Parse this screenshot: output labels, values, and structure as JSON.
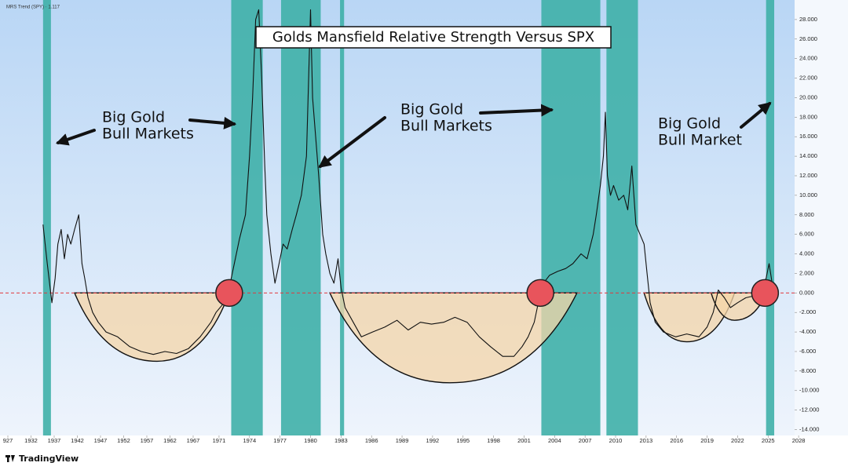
{
  "chart_data": {
    "type": "line",
    "title": "Golds Mansfield Relative Strength Versus SPX",
    "legend_label": "MRS Trend (SPY) · 1.117",
    "brand": "TradingView",
    "ylim": [
      -14.6,
      30.0
    ],
    "yticks": [
      {
        "value": 28,
        "label": "28.000"
      },
      {
        "value": 26,
        "label": "26.000"
      },
      {
        "value": 24,
        "label": "24.000"
      },
      {
        "value": 22,
        "label": "22.000"
      },
      {
        "value": 20,
        "label": "20.000"
      },
      {
        "value": 18,
        "label": "18.000"
      },
      {
        "value": 16,
        "label": "16.000"
      },
      {
        "value": 14,
        "label": "14.000"
      },
      {
        "value": 12,
        "label": "12.000"
      },
      {
        "value": 10,
        "label": "10.000"
      },
      {
        "value": 8,
        "label": "8.000"
      },
      {
        "value": 6,
        "label": "6.000"
      },
      {
        "value": 4,
        "label": "4.000"
      },
      {
        "value": 2,
        "label": "2.000"
      },
      {
        "value": 0,
        "label": "0.000"
      },
      {
        "value": -2,
        "label": "-2.000"
      },
      {
        "value": -4,
        "label": "-4.000"
      },
      {
        "value": -6,
        "label": "-6.000"
      },
      {
        "value": -8,
        "label": "-8.000"
      },
      {
        "value": -10,
        "label": "-10.000"
      },
      {
        "value": -12,
        "label": "-12.000"
      },
      {
        "value": -14,
        "label": "-14.000"
      }
    ],
    "xticks": [
      {
        "value": 1927,
        "label": "927"
      },
      1932,
      1937,
      1942,
      1947,
      1952,
      1957,
      1962,
      1967,
      1971,
      1974,
      1977,
      1980,
      1983,
      1986,
      1989,
      1992,
      1995,
      1998,
      2001,
      2004,
      2007,
      2010,
      2013,
      2016,
      2019,
      2022,
      2025,
      2028
    ],
    "reference_line": {
      "value": 0,
      "color": "#e0393e"
    },
    "bands_color": "#3fb0a9",
    "bands": [
      {
        "start": 1934.6,
        "end": 1936.3
      },
      {
        "start": 1972.2,
        "end": 1975.3
      },
      {
        "start": 1977.1,
        "end": 1981.0
      },
      {
        "start": 1982.9,
        "end": 1983.3
      },
      {
        "start": 2002.7,
        "end": 2008.5
      },
      {
        "start": 2009.1,
        "end": 2012.2
      },
      {
        "start": 2024.8,
        "end": 2025.6
      }
    ],
    "bowls_color": "#f5d6a8",
    "bowls": [
      {
        "start": 1941.4,
        "end": 1972.0,
        "bottom_x": 1959.2,
        "bottom": -7.0
      },
      {
        "start": 1981.9,
        "end": 2006.2,
        "bottom_x": 1993.7,
        "bottom": -9.2
      },
      {
        "start": 2012.8,
        "end": 2021.7,
        "bottom_x": 2017.0,
        "bottom": -5.0
      },
      {
        "start": 2019.4,
        "end": 2024.8,
        "bottom_x": 2021.7,
        "bottom": -2.8
      }
    ],
    "circles_color": "#e8545c",
    "circles": [
      {
        "x": 1972.0,
        "y": 0
      },
      {
        "x": 2002.6,
        "y": 0
      },
      {
        "x": 2024.7,
        "y": 0
      }
    ],
    "annotations": [
      {
        "lines": [
          "Big Gold",
          "Bull Markets"
        ]
      },
      {
        "lines": [
          "Big Gold",
          "Bull Markets"
        ]
      },
      {
        "lines": [
          "Big Gold",
          "Bull Market"
        ]
      }
    ],
    "series": [
      {
        "name": "MRS Trend (SPY)",
        "color": "#111111",
        "x": [
          1934.6,
          1935.5,
          1936.5,
          1937.2,
          1937.8,
          1938.5,
          1939.2,
          1939.9,
          1940.6,
          1941.4,
          1942.3,
          1943.0,
          1943.6,
          1944.3,
          1945.3,
          1946.5,
          1948.2,
          1950.7,
          1953.3,
          1955.8,
          1958.4,
          1960.9,
          1963.4,
          1966.0,
          1968.5,
          1970.2,
          1970.7,
          1971.5,
          1972.0,
          1972.5,
          1973.0,
          1973.6,
          1974.0,
          1974.3,
          1974.6,
          1974.9,
          1975.2,
          1975.5,
          1975.7,
          1976.1,
          1976.5,
          1976.9,
          1977.3,
          1977.7,
          1978.2,
          1978.6,
          1979.1,
          1979.6,
          1980.0,
          1980.2,
          1980.5,
          1980.8,
          1981.2,
          1981.5,
          1981.9,
          1982.3,
          1982.7,
          1983.0,
          1983.4,
          1984.2,
          1985.0,
          1986.1,
          1987.3,
          1988.5,
          1989.6,
          1990.8,
          1991.9,
          1993.1,
          1994.2,
          1995.4,
          1996.6,
          1997.7,
          1998.9,
          2000.0,
          2000.8,
          2001.4,
          2002.0,
          2002.4,
          2002.9,
          2003.5,
          2004.3,
          2005.1,
          2005.8,
          2006.6,
          2007.2,
          2007.8,
          2008.1,
          2008.5,
          2008.8,
          2009.0,
          2009.2,
          2009.5,
          2009.8,
          2010.3,
          2010.8,
          2011.2,
          2011.6,
          2012.0,
          2012.4,
          2012.8,
          2013.1,
          2013.4,
          2013.9,
          2014.7,
          2015.9,
          2017.0,
          2018.2,
          2019.0,
          2019.6,
          2020.1,
          2020.7,
          2021.3,
          2022.0,
          2022.8,
          2023.6,
          2024.4,
          2024.8,
          2025.1,
          2025.4
        ],
        "values": [
          7,
          3,
          -1,
          1.5,
          5,
          6.5,
          3.5,
          6,
          5,
          6.5,
          8,
          3,
          1.5,
          -0.5,
          -2,
          -3,
          -4,
          -4.5,
          -5.5,
          -6,
          -6.3,
          -6,
          -6.2,
          -5.7,
          -4.5,
          -3,
          -2,
          -1,
          0.5,
          3,
          5.5,
          8,
          14,
          20,
          28,
          29,
          22,
          13,
          8,
          4,
          1,
          3,
          5,
          4.5,
          6.5,
          8,
          10,
          14,
          29,
          20,
          16,
          12,
          6,
          4,
          2,
          1,
          3.5,
          0.5,
          -1.5,
          -3,
          -4.5,
          -4,
          -3.5,
          -2.8,
          -3.8,
          -3,
          -3.2,
          -3,
          -2.5,
          -3,
          -4.5,
          -5.5,
          -6.5,
          -6.5,
          -5.5,
          -4.5,
          -3,
          -1,
          1,
          1.8,
          2.2,
          2.5,
          3,
          4,
          3.5,
          6,
          8,
          11,
          14,
          18.5,
          12,
          10,
          11,
          9.5,
          10,
          8.5,
          13,
          7,
          6,
          5,
          2,
          -1,
          -3,
          -4,
          -4.5,
          -4.2,
          -4.5,
          -3.5,
          -2,
          0.3,
          -0.5,
          -1.5,
          -1,
          -0.5,
          -0.3,
          0.5,
          1.5,
          3,
          1
        ]
      }
    ]
  }
}
